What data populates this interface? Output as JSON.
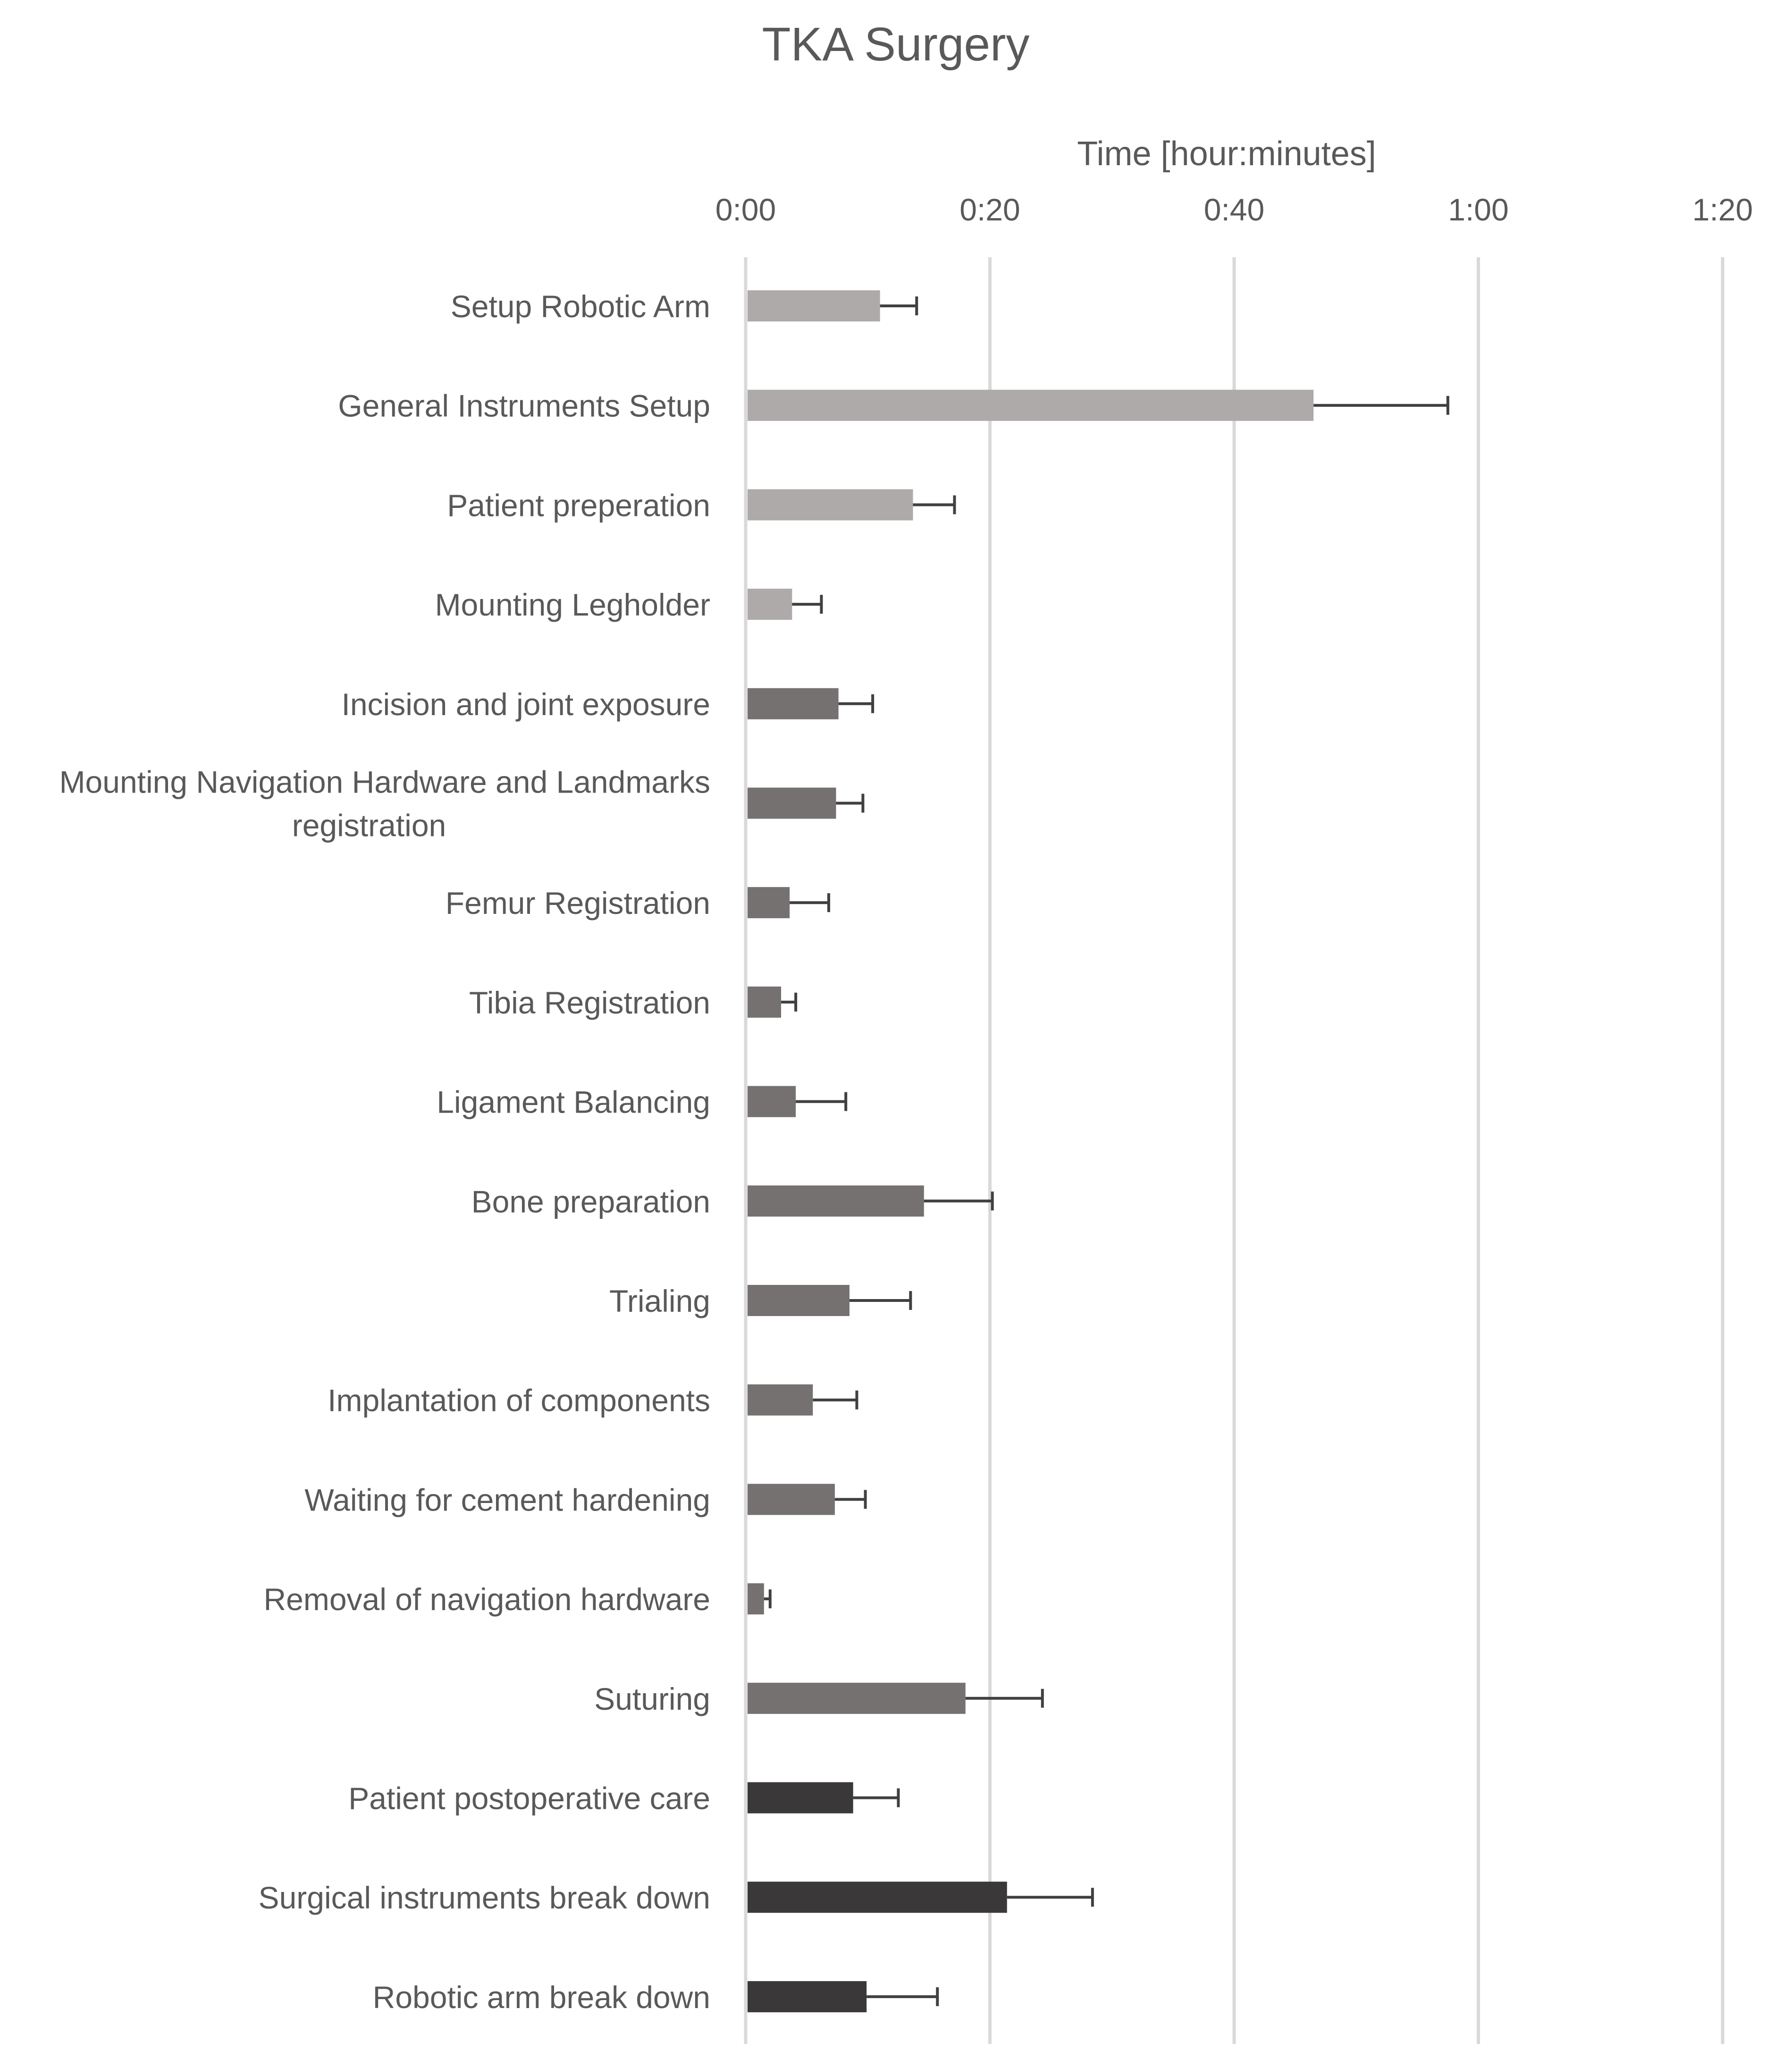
{
  "chart_data": {
    "type": "bar",
    "orientation": "horizontal",
    "title": "TKA Surgery",
    "xlabel": "Time [hour:minutes]",
    "ylabel": "",
    "xlim_minutes": [
      0,
      80
    ],
    "x_ticks": [
      {
        "value": 0,
        "label": "0:00"
      },
      {
        "value": 20,
        "label": "0:20"
      },
      {
        "value": 40,
        "label": "0:40"
      },
      {
        "value": 60,
        "label": "1:00"
      },
      {
        "value": 80,
        "label": "1:20"
      }
    ],
    "grid": true,
    "legend": "none",
    "categories": [
      "Setup Robotic Arm",
      "General Instruments Setup",
      "Patient preperation",
      "Mounting Legholder",
      "Incision and joint exposure",
      "Mounting Navigation Hardware and Landmarks registration",
      "Femur Registration",
      "Tibia Registration",
      "Ligament Balancing",
      "Bone preparation",
      "Trialing",
      "Implantation of components",
      "Waiting for cement hardening",
      "Removal of navigation hardware",
      "Suturing",
      "Patient postoperative care",
      "Surgical instruments break down",
      "Robotic arm break down"
    ],
    "category_lines": [
      [
        "Setup Robotic Arm"
      ],
      [
        "General Instruments Setup"
      ],
      [
        "Patient preperation"
      ],
      [
        "Mounting Legholder"
      ],
      [
        "Incision and joint exposure"
      ],
      [
        "Mounting Navigation Hardware and Landmarks",
        "registration"
      ],
      [
        "Femur Registration"
      ],
      [
        "Tibia Registration"
      ],
      [
        "Ligament Balancing"
      ],
      [
        "Bone preparation"
      ],
      [
        "Trialing"
      ],
      [
        "Implantation of components"
      ],
      [
        "Waiting for cement hardening"
      ],
      [
        "Removal of navigation hardware"
      ],
      [
        "Suturing"
      ],
      [
        "Patient postoperative care"
      ],
      [
        "Surgical instruments break down"
      ],
      [
        "Robotic arm break down"
      ]
    ],
    "values_minutes": [
      11.0,
      46.5,
      13.7,
      3.8,
      7.6,
      7.4,
      3.6,
      2.9,
      4.1,
      14.6,
      8.5,
      5.5,
      7.3,
      1.5,
      18.0,
      8.8,
      21.4,
      9.9
    ],
    "error_minutes": [
      3.0,
      11.0,
      3.4,
      2.4,
      2.8,
      2.2,
      3.2,
      1.2,
      4.1,
      5.6,
      5.0,
      3.6,
      2.5,
      0.5,
      6.3,
      3.7,
      7.0,
      5.8
    ],
    "groups": [
      "pre",
      "pre",
      "pre",
      "pre",
      "intra",
      "intra",
      "intra",
      "intra",
      "intra",
      "intra",
      "intra",
      "intra",
      "intra",
      "intra",
      "intra",
      "post",
      "post",
      "post"
    ],
    "group_colors": {
      "pre": "#aeaaaa",
      "intra": "#757171",
      "post": "#3a3838"
    }
  }
}
